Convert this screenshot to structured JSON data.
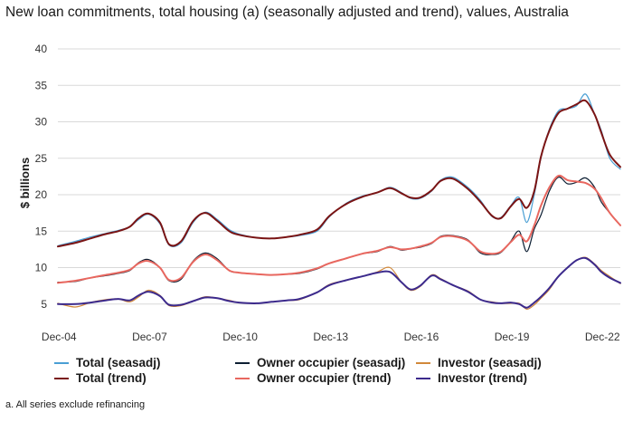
{
  "chart_data": {
    "type": "line",
    "title": "New loan commitments, total housing (a) (seasonally adjusted and trend), values, Australia",
    "xlabel": "",
    "ylabel": "$ billions",
    "ylim": [
      0,
      40
    ],
    "yticks": [
      5,
      10,
      15,
      20,
      25,
      30,
      35,
      40
    ],
    "xticks": [
      "Dec-04",
      "Dec-07",
      "Dec-10",
      "Dec-13",
      "Dec-16",
      "Dec-19",
      "Dec-22"
    ],
    "x_range": [
      2004.92,
      2023.55
    ],
    "grid": "horizontal",
    "legend_placement": "bottom",
    "x": [
      2004.92,
      2005.5,
      2006.0,
      2006.5,
      2006.92,
      2007.3,
      2007.6,
      2007.92,
      2008.3,
      2008.6,
      2009.0,
      2009.4,
      2009.8,
      2010.2,
      2010.6,
      2010.92,
      2011.5,
      2012.0,
      2012.5,
      2012.92,
      2013.5,
      2013.92,
      2014.5,
      2015.0,
      2015.5,
      2015.92,
      2016.3,
      2016.6,
      2016.92,
      2017.3,
      2017.6,
      2018.0,
      2018.5,
      2018.92,
      2019.3,
      2019.6,
      2019.92,
      2020.2,
      2020.45,
      2020.7,
      2020.92,
      2021.2,
      2021.5,
      2021.8,
      2022.1,
      2022.4,
      2022.7,
      2022.92,
      2023.2,
      2023.55
    ],
    "series": [
      {
        "name": "Total (seasadj)",
        "color": "#4a9fd4",
        "width": 1.2,
        "values": [
          13.0,
          13.6,
          14.2,
          14.7,
          15.1,
          15.6,
          16.6,
          17.3,
          16.0,
          13.1,
          13.4,
          16.2,
          17.6,
          16.6,
          15.2,
          14.6,
          14.1,
          14.0,
          14.2,
          14.4,
          15.0,
          17.0,
          18.9,
          19.8,
          20.3,
          21.0,
          20.3,
          19.5,
          19.5,
          20.5,
          22.0,
          22.4,
          21.0,
          19.2,
          17.0,
          16.9,
          18.5,
          19.6,
          16.2,
          20.0,
          25.0,
          29.0,
          31.5,
          31.8,
          32.2,
          33.8,
          31.0,
          28.8,
          25.0,
          23.5
        ]
      },
      {
        "name": "Owner occupier (seasadj)",
        "color": "#0d1f33",
        "width": 1.2,
        "values": [
          8.0,
          8.1,
          8.6,
          8.9,
          9.2,
          9.6,
          10.7,
          11.1,
          10.0,
          8.2,
          8.4,
          10.9,
          12.0,
          11.2,
          9.6,
          9.3,
          9.1,
          9.0,
          9.1,
          9.2,
          9.8,
          10.6,
          11.3,
          11.9,
          12.2,
          12.9,
          12.4,
          12.6,
          12.8,
          13.3,
          14.3,
          14.4,
          13.8,
          12.0,
          11.8,
          12.1,
          13.6,
          15.0,
          12.2,
          15.3,
          17.2,
          20.5,
          22.4,
          21.5,
          21.7,
          22.3,
          21.0,
          19.0,
          17.5,
          15.8
        ]
      },
      {
        "name": "Investor (seasadj)",
        "color": "#d1883a",
        "width": 1.2,
        "values": [
          5.1,
          4.6,
          5.2,
          5.6,
          5.7,
          5.3,
          6.0,
          6.9,
          6.2,
          4.8,
          4.8,
          5.4,
          6.0,
          5.8,
          5.5,
          5.2,
          5.1,
          5.3,
          5.5,
          5.6,
          6.6,
          7.7,
          8.3,
          8.8,
          9.4,
          10.0,
          8.0,
          6.9,
          7.4,
          9.0,
          8.5,
          7.6,
          6.8,
          5.6,
          5.3,
          5.1,
          5.1,
          5.1,
          4.3,
          4.9,
          5.8,
          7.0,
          8.8,
          10.0,
          11.0,
          11.4,
          10.5,
          9.6,
          8.8,
          7.8
        ]
      },
      {
        "name": "Total (trend)",
        "color": "#7a1414",
        "width": 2.0,
        "values": [
          12.9,
          13.4,
          14.0,
          14.6,
          15.0,
          15.6,
          16.8,
          17.4,
          16.2,
          13.2,
          13.6,
          16.4,
          17.5,
          16.4,
          15.0,
          14.5,
          14.1,
          14.0,
          14.2,
          14.5,
          15.2,
          17.1,
          18.8,
          19.7,
          20.3,
          20.9,
          20.2,
          19.6,
          19.6,
          20.6,
          21.9,
          22.2,
          20.8,
          19.0,
          17.1,
          16.8,
          18.4,
          19.4,
          18.2,
          20.5,
          25.2,
          28.8,
          31.2,
          31.8,
          32.4,
          32.9,
          31.0,
          28.5,
          25.5,
          23.8
        ]
      },
      {
        "name": "Owner occupier (trend)",
        "color": "#e8675f",
        "width": 2.0,
        "values": [
          7.9,
          8.2,
          8.6,
          9.0,
          9.3,
          9.7,
          10.6,
          10.9,
          10.0,
          8.3,
          8.6,
          10.8,
          11.8,
          11.0,
          9.6,
          9.3,
          9.1,
          9.0,
          9.1,
          9.3,
          9.9,
          10.6,
          11.3,
          11.9,
          12.3,
          12.8,
          12.5,
          12.6,
          12.9,
          13.4,
          14.2,
          14.3,
          13.7,
          12.2,
          11.9,
          12.2,
          13.5,
          14.5,
          13.6,
          15.8,
          18.5,
          21.0,
          22.6,
          22.0,
          21.8,
          21.6,
          20.8,
          19.5,
          17.5,
          15.8
        ]
      },
      {
        "name": "Investor (trend)",
        "color": "#3c2a8c",
        "width": 2.0,
        "values": [
          5.0,
          5.0,
          5.2,
          5.5,
          5.7,
          5.5,
          6.2,
          6.7,
          6.1,
          4.9,
          4.9,
          5.4,
          5.9,
          5.8,
          5.4,
          5.2,
          5.1,
          5.3,
          5.5,
          5.7,
          6.6,
          7.6,
          8.3,
          8.8,
          9.3,
          9.4,
          8.0,
          7.0,
          7.5,
          8.9,
          8.4,
          7.6,
          6.7,
          5.6,
          5.2,
          5.1,
          5.2,
          5.0,
          4.5,
          5.2,
          6.0,
          7.2,
          8.8,
          10.0,
          11.0,
          11.3,
          10.4,
          9.4,
          8.6,
          7.9
        ]
      }
    ]
  },
  "legend": [
    {
      "label": "Total (seasadj)",
      "color": "#4a9fd4"
    },
    {
      "label": "Owner occupier (seasadj)",
      "color": "#0d1f33"
    },
    {
      "label": "Investor (seasadj)",
      "color": "#d1883a"
    },
    {
      "label": "Total (trend)",
      "color": "#7a1414"
    },
    {
      "label": "Owner occupier (trend)",
      "color": "#e8675f"
    },
    {
      "label": "Investor (trend)",
      "color": "#3c2a8c"
    }
  ],
  "footnote": "a. All series exclude refinancing"
}
